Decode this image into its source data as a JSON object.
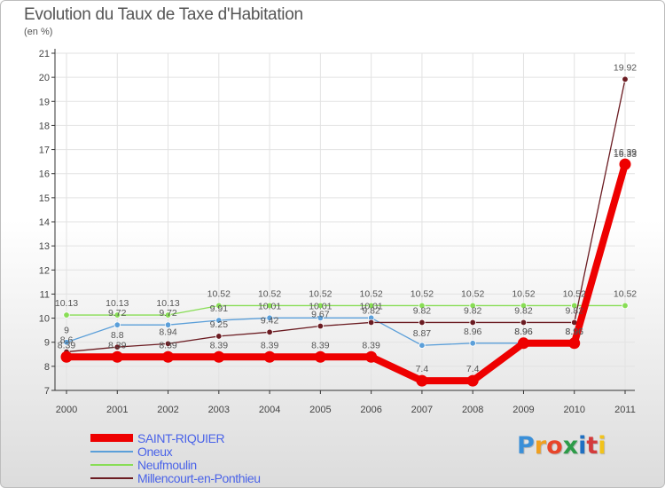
{
  "header": {
    "title": "Evolution du Taux de Taxe d'Habitation",
    "subtitle": "(en %)"
  },
  "colors": {
    "grid": "#e2e2e2",
    "axis": "#333333"
  },
  "chart_data": {
    "type": "line",
    "title": "Evolution du Taux de Taxe d'Habitation",
    "ylabel": "(en %)",
    "xlabel": "",
    "x": [
      "2000",
      "2001",
      "2002",
      "2003",
      "2004",
      "2005",
      "2006",
      "2007",
      "2008",
      "2009",
      "2010",
      "2011"
    ],
    "ylim": [
      7,
      21
    ],
    "yticks": [
      7,
      8,
      9,
      10,
      11,
      12,
      13,
      14,
      15,
      16,
      17,
      18,
      19,
      20,
      21
    ],
    "grid": true,
    "legend_position": "bottom-left",
    "series": [
      {
        "name": "SAINT-RIQUIER",
        "color": "#ee0000",
        "values": [
          8.39,
          8.39,
          8.39,
          8.39,
          8.39,
          8.39,
          8.39,
          7.4,
          7.4,
          8.96,
          8.96,
          16.39
        ],
        "labels": [
          "8.39",
          "8.39",
          "8.39",
          "8.39",
          "8.39",
          "8.39",
          "8.39",
          "7.4",
          "7.4",
          "8.96",
          "8.96",
          "16.39"
        ]
      },
      {
        "name": "Oneux",
        "color": "#5b9fd9",
        "values": [
          9,
          9.72,
          9.72,
          9.91,
          10.01,
          10.01,
          10.01,
          8.87,
          8.96,
          8.96,
          8.96,
          16.33
        ],
        "labels": [
          "9",
          "9.72",
          "9.72",
          "9.91",
          "10.01",
          "10.01",
          "10.01",
          "8.87",
          "8.96",
          "8.96",
          "8.96",
          "16.33"
        ]
      },
      {
        "name": "Neufmoulin",
        "color": "#88dd55",
        "values": [
          10.13,
          10.13,
          10.13,
          10.52,
          10.52,
          10.52,
          10.52,
          10.52,
          10.52,
          10.52,
          10.52,
          10.52
        ],
        "labels": [
          "10.13",
          "10.13",
          "10.13",
          "10.52",
          "10.52",
          "10.52",
          "10.52",
          "10.52",
          "10.52",
          "10.52",
          "10.52",
          "10.52"
        ]
      },
      {
        "name": "Millencourt-en-Ponthieu",
        "color": "#6b1c22",
        "values": [
          8.6,
          8.8,
          8.94,
          9.25,
          9.42,
          9.67,
          9.82,
          9.82,
          9.82,
          9.82,
          9.82,
          19.92
        ],
        "labels": [
          "8.6",
          "8.8",
          "8.94",
          "9.25",
          "9.42",
          "9.67",
          "9.82",
          "9.82",
          "9.82",
          "9.82",
          "9.82",
          "19.92"
        ]
      }
    ]
  },
  "legend": {
    "items": [
      {
        "label": "SAINT-RIQUIER",
        "color": "#ee0000"
      },
      {
        "label": "Oneux",
        "color": "#5b9fd9"
      },
      {
        "label": "Neufmoulin",
        "color": "#88dd55"
      },
      {
        "label": "Millencourt-en-Ponthieu",
        "color": "#6b1c22"
      }
    ]
  },
  "brand": {
    "name": "Proxiti",
    "letters": [
      "P",
      "r",
      "o",
      "x",
      "i",
      "t",
      "i"
    ],
    "letter_colors": [
      "#3a8fd8",
      "#f0a020",
      "#e8452a",
      "#2d9b48",
      "#1e6fc2",
      "#d43b3b",
      "#f2c31a"
    ]
  }
}
